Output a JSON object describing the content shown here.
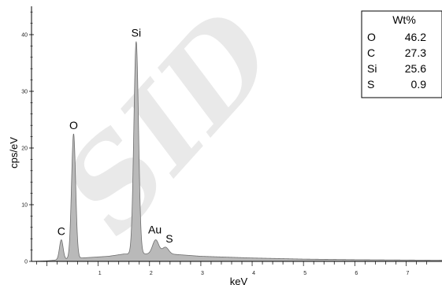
{
  "chart_data": {
    "type": "area",
    "xlabel": "keV",
    "ylabel": "cps/eV",
    "xlim": [
      -0.3,
      7.7
    ],
    "ylim": [
      0,
      45
    ],
    "x_ticks": [
      1,
      2,
      3,
      4,
      5,
      6,
      7
    ],
    "y_ticks": [
      0,
      10,
      20,
      30,
      40
    ],
    "fill_color": "#b9b9b9",
    "line_color": "#6e6e6e",
    "grid": false,
    "legend": "none",
    "baseline": [
      {
        "x": -0.3,
        "y": 0.0
      },
      {
        "x": 0.0,
        "y": 0.1
      },
      {
        "x": 0.5,
        "y": 0.5
      },
      {
        "x": 1.2,
        "y": 0.9
      },
      {
        "x": 1.5,
        "y": 1.3
      },
      {
        "x": 2.4,
        "y": 1.3
      },
      {
        "x": 3.0,
        "y": 0.9
      },
      {
        "x": 4.0,
        "y": 0.6
      },
      {
        "x": 5.0,
        "y": 0.4
      },
      {
        "x": 6.0,
        "y": 0.3
      },
      {
        "x": 7.7,
        "y": 0.2
      }
    ],
    "peaks": [
      {
        "label": "C",
        "x": 0.28,
        "height": 3.5,
        "width": 0.035
      },
      {
        "label": "O",
        "x": 0.52,
        "height": 22.0,
        "width": 0.04
      },
      {
        "label": "Si",
        "x": 1.74,
        "height": 37.5,
        "width": 0.045
      },
      {
        "label": "Au",
        "x": 2.12,
        "height": 2.5,
        "width": 0.06
      },
      {
        "label": "S",
        "x": 2.31,
        "height": 1.2,
        "width": 0.06
      }
    ],
    "table": {
      "header": "Wt%",
      "rows": [
        {
          "element": "O",
          "value": "46.2"
        },
        {
          "element": "C",
          "value": "27.3"
        },
        {
          "element": "Si",
          "value": "25.6"
        },
        {
          "element": "S",
          "value": "0.9"
        }
      ]
    },
    "watermark": "SID"
  }
}
